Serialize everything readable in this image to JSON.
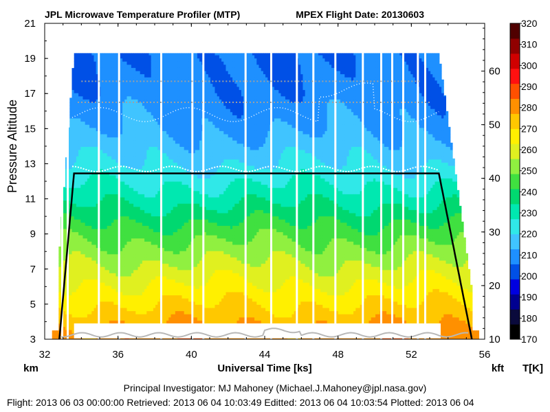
{
  "header": {
    "title_left": "JPL Microwave Temperature Profiler (MTP)",
    "title_right": "MPEX  Flight Date: 20130603"
  },
  "footer": {
    "pi": "Principal Investigator: MJ Mahoney (Michael.J.Mahoney@jpl.nasa.gov)",
    "meta": "Flight: 2013 06 03 00:00:00   Retrieved: 2013 06 04 10:03:49   Editted: 2013 06 04 10:03:54   Plotted: 2013 06 04"
  },
  "chart_data": {
    "type": "heatmap",
    "title": "JPL Microwave Temperature Profiler (MTP)",
    "subtitle": "MPEX  Flight Date: 20130603",
    "xlabel": "Universal Time [ks]",
    "ylabel": "Pressure Altitude",
    "x_unit_label": "km",
    "y2_unit_label": "kft",
    "colorbar_label": "T[K]",
    "xlim": [
      32,
      56
    ],
    "ylim": [
      3,
      21
    ],
    "y2lim": [
      10,
      68.9
    ],
    "x_ticks": [
      32,
      36,
      40,
      44,
      48,
      52,
      56
    ],
    "y_ticks": [
      3,
      5,
      7,
      9,
      11,
      13,
      15,
      17,
      19,
      21
    ],
    "y2_ticks": [
      10,
      20,
      30,
      40,
      50,
      60
    ],
    "colorbar_ticks": [
      170,
      180,
      190,
      200,
      210,
      220,
      230,
      240,
      250,
      260,
      270,
      280,
      290,
      300,
      310,
      320
    ],
    "colorbar_colors": [
      "#000000",
      "#0a0a3c",
      "#000090",
      "#0000e0",
      "#0050e6",
      "#1e90ff",
      "#40c4ff",
      "#30e8e8",
      "#00e8b0",
      "#00d870",
      "#40e040",
      "#90f040",
      "#e0f020",
      "#fff000",
      "#ffc800",
      "#ff9000",
      "#ff5000",
      "#ff1010",
      "#d00000",
      "#900000",
      "#500000"
    ],
    "temperature_profile": [
      {
        "alt_km": 3,
        "T_K": 282
      },
      {
        "alt_km": 5,
        "T_K": 270
      },
      {
        "alt_km": 7,
        "T_K": 258
      },
      {
        "alt_km": 9,
        "T_K": 246
      },
      {
        "alt_km": 11,
        "T_K": 232
      },
      {
        "alt_km": 13,
        "T_K": 220
      },
      {
        "alt_km": 15,
        "T_K": 212
      },
      {
        "alt_km": 17,
        "T_K": 208
      },
      {
        "alt_km": 19,
        "T_K": 206
      }
    ],
    "aircraft_altitude_km": {
      "takeoff_time_ks": 32.8,
      "cruise_start_ks": 33.6,
      "cruise_alt_km": 12.45,
      "descent_start_ks": 53.5,
      "landing_time_ks": 55.3
    },
    "tropopause_km": 12.7,
    "upper_tropopause_km": 15.8,
    "data_gap_times_ks": [
      32.9,
      33.2,
      34.9,
      36.0,
      38.3,
      40.0,
      40.6,
      42.9,
      44.3,
      45.7,
      46.6,
      47.8,
      49.3,
      50.3,
      50.9,
      51.5,
      52.3,
      52.7
    ]
  }
}
